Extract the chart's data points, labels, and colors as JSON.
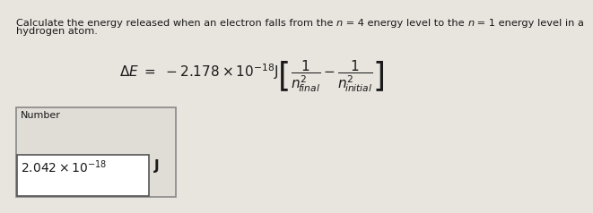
{
  "bg_color": "#e8e4de",
  "question_line1a": "Calculate the energy released when an electron falls from the ",
  "question_line1b": "n",
  "question_line1c": " = 4 energy level to the ",
  "question_line1d": "n",
  "question_line1e": " = 1 energy level in a",
  "question_line2": "hydrogen atom.",
  "formula": "$\\Delta E \\ = \\ -2.178 \\times 10^{-18} \\mathrm{J}\\left[\\dfrac{1}{n^{2}_{\\!final}} - \\dfrac{1}{n^{2}_{\\!initial}}\\right]$",
  "number_label": "Number",
  "answer_text": "$2.042 \\times 10^{-18}$",
  "answer_unit": "J",
  "box_bg": "#ffffff",
  "outer_box_bg": "#e0dcd6",
  "text_color": "#1a1a1a",
  "font_size_question": 8.2,
  "font_size_formula": 11,
  "font_size_answer": 10,
  "font_size_number": 8
}
